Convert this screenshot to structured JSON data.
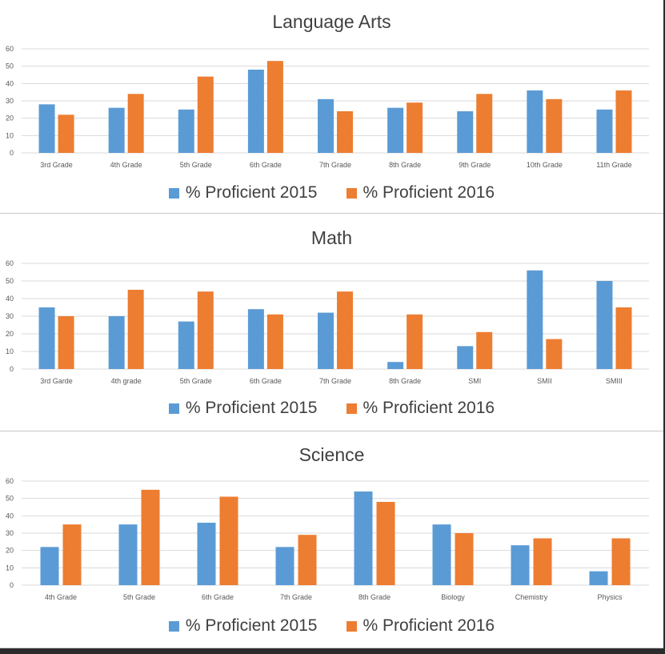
{
  "legend": {
    "series_2015": "% Proficient 2015",
    "series_2016": "% Proficient 2016"
  },
  "colors": {
    "series_2015": "#5b9bd5",
    "series_2016": "#ed7d31"
  },
  "chart_data": [
    {
      "type": "bar",
      "title": "Language Arts",
      "xlabel": "",
      "ylabel": "",
      "ylim": [
        0,
        60
      ],
      "yticks": [
        0,
        10,
        20,
        30,
        40,
        50,
        60
      ],
      "grid": true,
      "legend_position": "bottom",
      "categories": [
        "3rd Grade",
        "4th Grade",
        "5th Grade",
        "6th Grade",
        "7th Grade",
        "8th Grade",
        "9th Grade",
        "10th Grade",
        "11th Grade"
      ],
      "series": [
        {
          "name": "% Proficient 2015",
          "values": [
            28,
            26,
            25,
            48,
            31,
            26,
            24,
            36,
            25
          ]
        },
        {
          "name": "% Proficient 2016",
          "values": [
            22,
            34,
            44,
            53,
            24,
            29,
            34,
            31,
            36
          ]
        }
      ]
    },
    {
      "type": "bar",
      "title": "Math",
      "xlabel": "",
      "ylabel": "",
      "ylim": [
        0,
        60
      ],
      "yticks": [
        0,
        10,
        20,
        30,
        40,
        50,
        60
      ],
      "grid": true,
      "legend_position": "bottom",
      "categories": [
        "3rd Garde",
        "4th grade",
        "5th Grade",
        "6th Grade",
        "7th Grade",
        "8th Grade",
        "SMI",
        "SMII",
        "SMIII"
      ],
      "series": [
        {
          "name": "% Proficient 2015",
          "values": [
            35,
            30,
            27,
            34,
            32,
            4,
            13,
            56,
            50
          ]
        },
        {
          "name": "% Proficient 2016",
          "values": [
            30,
            45,
            44,
            31,
            44,
            31,
            21,
            17,
            35
          ]
        }
      ]
    },
    {
      "type": "bar",
      "title": "Science",
      "xlabel": "",
      "ylabel": "",
      "ylim": [
        0,
        60
      ],
      "yticks": [
        0,
        10,
        20,
        30,
        40,
        50,
        60
      ],
      "grid": true,
      "legend_position": "bottom",
      "categories": [
        "4th Grade",
        "5th Grade",
        "6th Grade",
        "7th Grade",
        "8th Grade",
        "Biology",
        "Chemistry",
        "Physics"
      ],
      "series": [
        {
          "name": "% Proficient 2015",
          "values": [
            22,
            35,
            36,
            22,
            54,
            35,
            23,
            8
          ]
        },
        {
          "name": "% Proficient 2016",
          "values": [
            35,
            55,
            51,
            29,
            48,
            30,
            27,
            27
          ]
        }
      ]
    }
  ]
}
